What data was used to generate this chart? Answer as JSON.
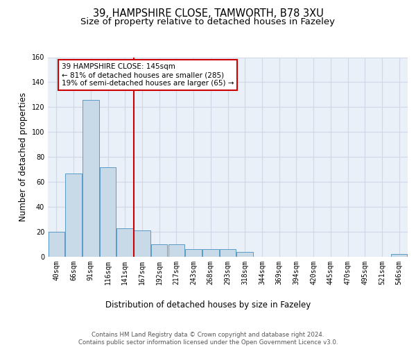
{
  "title1": "39, HAMPSHIRE CLOSE, TAMWORTH, B78 3XU",
  "title2": "Size of property relative to detached houses in Fazeley",
  "xlabel": "Distribution of detached houses by size in Fazeley",
  "ylabel": "Number of detached properties",
  "bar_labels": [
    "40sqm",
    "66sqm",
    "91sqm",
    "116sqm",
    "141sqm",
    "167sqm",
    "192sqm",
    "217sqm",
    "243sqm",
    "268sqm",
    "293sqm",
    "318sqm",
    "344sqm",
    "369sqm",
    "394sqm",
    "420sqm",
    "445sqm",
    "470sqm",
    "495sqm",
    "521sqm",
    "546sqm"
  ],
  "bar_values": [
    20,
    67,
    126,
    72,
    23,
    21,
    10,
    10,
    6,
    6,
    6,
    4,
    0,
    0,
    0,
    0,
    0,
    0,
    0,
    0,
    2
  ],
  "bar_color": "#c8d9e8",
  "bar_edge_color": "#5a9ac5",
  "reference_line_index": 4,
  "annotation_text": "39 HAMPSHIRE CLOSE: 145sqm\n← 81% of detached houses are smaller (285)\n19% of semi-detached houses are larger (65) →",
  "annotation_box_color": "#ffffff",
  "annotation_box_edge_color": "#cc0000",
  "ylim": [
    0,
    160
  ],
  "yticks": [
    0,
    20,
    40,
    60,
    80,
    100,
    120,
    140,
    160
  ],
  "grid_color": "#d0d8e8",
  "background_color": "#eaf0f8",
  "footer_text": "Contains HM Land Registry data © Crown copyright and database right 2024.\nContains public sector information licensed under the Open Government Licence v3.0.",
  "title_fontsize": 10.5,
  "subtitle_fontsize": 9.5,
  "axis_label_fontsize": 8.5,
  "tick_fontsize": 7,
  "annotation_fontsize": 7.5
}
